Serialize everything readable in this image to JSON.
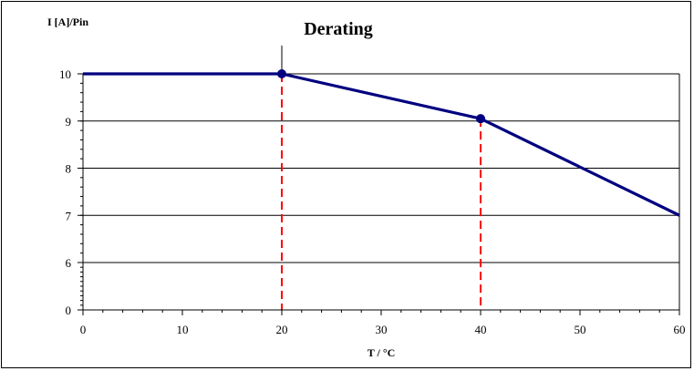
{
  "chart_data": {
    "type": "line",
    "title": "Derating",
    "ylabel": "I [A]/Pin",
    "xlabel": "T / °C",
    "xlim": [
      0,
      60
    ],
    "ylim": [
      0,
      10
    ],
    "xticks": [
      "0",
      "10",
      "20",
      "30",
      "40",
      "50",
      "60"
    ],
    "yticks": [
      "0",
      "",
      "6",
      "7",
      "8",
      "9",
      "10"
    ],
    "ytick_values": [
      0,
      5,
      6,
      7,
      8,
      9,
      10
    ],
    "y_axis_break": true,
    "grid": true,
    "series": [
      {
        "x": [
          0,
          20,
          40,
          60
        ],
        "y": [
          10,
          10,
          9.05,
          7
        ],
        "markers": [
          false,
          true,
          true,
          false
        ],
        "color": "#000080"
      }
    ],
    "reference_lines": [
      {
        "x": 20,
        "y": 10,
        "color": "#ff0000",
        "style": "dashed"
      },
      {
        "x": 40,
        "y": 9.05,
        "color": "#ff0000",
        "style": "dashed"
      }
    ]
  }
}
